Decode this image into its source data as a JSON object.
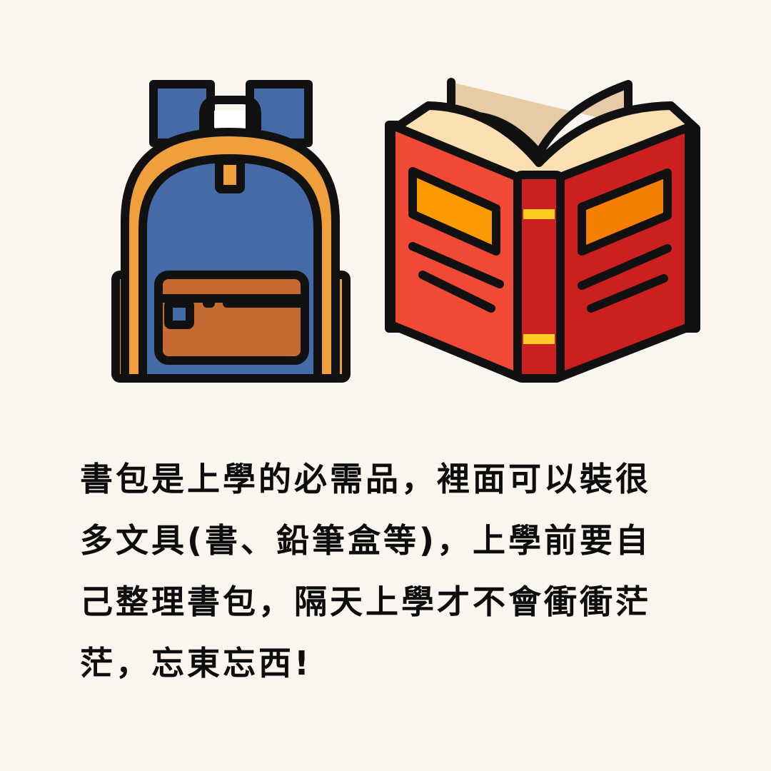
{
  "illustrations": [
    {
      "icon": "backpack-icon",
      "colors": {
        "body": "#456aa8",
        "trim": "#ef9f3c",
        "pocket": "#c56a31",
        "outline": "#111111"
      }
    },
    {
      "icon": "open-book-icon",
      "colors": {
        "cover": "#f04a37",
        "cover_dark": "#cc2020",
        "label": "#fb9a00",
        "pages": "#fbe0b4",
        "spine_band": "#ffcc22",
        "outline": "#111111"
      }
    }
  ],
  "caption": {
    "lines": [
      "書包是上學的必需品，裡面可以裝很",
      "多文具(書、鉛筆盒等)，上學前要自",
      "己整理書包，隔天上學才不會衝衝茫",
      "茫，忘東忘西!"
    ]
  },
  "background_color": "#fbf5f0"
}
